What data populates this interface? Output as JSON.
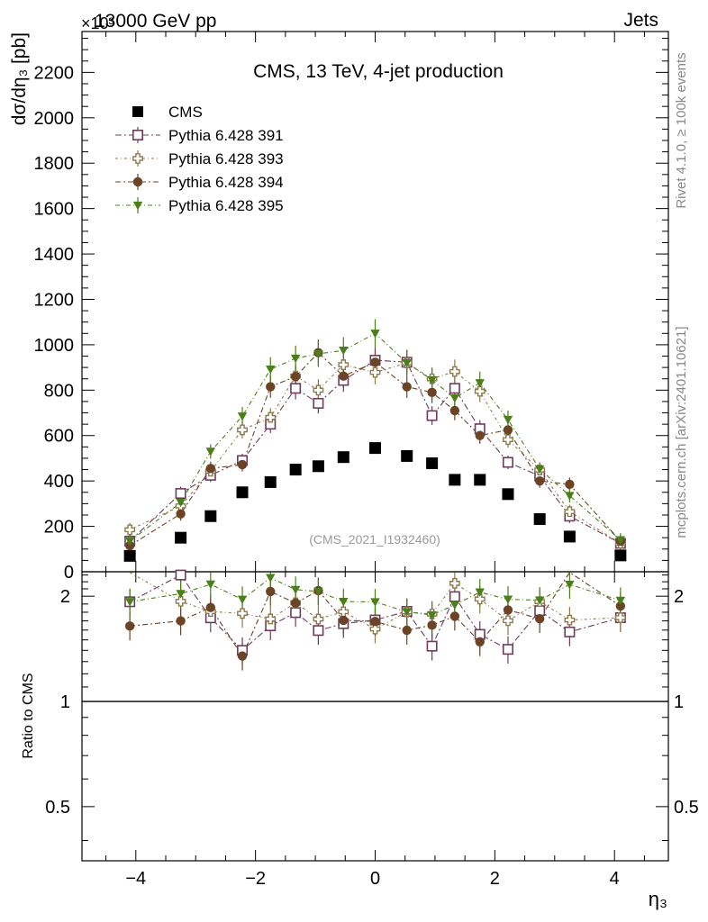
{
  "header": {
    "left": "13000 GeV pp",
    "right": "Jets",
    "exponent": "×10³"
  },
  "right_labels": {
    "rivet": "Rivet 4.1.0, ≥ 100k events",
    "mcplots": "mcplots.cern.ch [arXiv:2401.10621]"
  },
  "chart_data": {
    "type": "scatter",
    "title": "CMS, 13 TeV, 4-jet production",
    "watermark": "(CMS_2021_I1932460)",
    "xlabel": "η₃",
    "ylabel": "dσ/dη₃ [pb]",
    "ratio_ylabel": "Ratio to CMS",
    "xlim": [
      -4.9,
      4.9
    ],
    "ylim": [
      0,
      2380
    ],
    "ratio_ylim": [
      0.35,
      2.35
    ],
    "x_ticks": [
      -4,
      -2,
      0,
      2,
      4
    ],
    "x_tick_labels": [
      "−4",
      "−2",
      "0",
      "2",
      "4"
    ],
    "y_ticks": [
      0,
      200,
      400,
      600,
      800,
      1000,
      1200,
      1400,
      1600,
      1800,
      2000,
      2200
    ],
    "y_tick_labels": [
      "0",
      "200",
      "400",
      "600",
      "800",
      "1000",
      "1200",
      "1400",
      "1600",
      "1800",
      "2000",
      "2200"
    ],
    "ratio_ticks": [
      0.5,
      1,
      2
    ],
    "ratio_tick_labels": [
      "0.5",
      "1",
      "2"
    ],
    "x": [
      -4.1,
      -3.25,
      -2.75,
      -2.22,
      -1.75,
      -1.33,
      -0.95,
      -0.53,
      0.0,
      0.53,
      0.95,
      1.33,
      1.75,
      2.22,
      2.75,
      3.25,
      4.1
    ],
    "series": [
      {
        "name": "CMS",
        "marker": "filled-square",
        "color": "#000000",
        "values": [
          70,
          150,
          245,
          350,
          395,
          450,
          465,
          505,
          545,
          510,
          478,
          405,
          405,
          342,
          232,
          155,
          72
        ]
      },
      {
        "name": "Pythia 6.428 391",
        "marker": "open-square",
        "color": "#6e3c5a",
        "values": [
          135,
          345,
          425,
          490,
          650,
          808,
          742,
          843,
          932,
          923,
          688,
          808,
          630,
          482,
          422,
          245,
          125
        ]
      },
      {
        "name": "Pythia 6.428 393",
        "marker": "open-cross",
        "color": "#8c7a4e",
        "values": [
          185,
          290,
          443,
          625,
          680,
          862,
          800,
          912,
          878,
          920,
          850,
          882,
          795,
          582,
          448,
          265,
          125
        ]
      },
      {
        "name": "Pythia 6.428 394",
        "marker": "filled-circle",
        "color": "#6b4426",
        "values": [
          115,
          255,
          455,
          472,
          815,
          860,
          965,
          862,
          923,
          815,
          790,
          710,
          600,
          625,
          400,
          385,
          135
        ]
      },
      {
        "name": "Pythia 6.428 395",
        "marker": "filled-triangle-down",
        "color": "#4a7f19",
        "values": [
          135,
          305,
          530,
          685,
          892,
          940,
          960,
          975,
          1050,
          920,
          845,
          765,
          832,
          670,
          452,
          335,
          140
        ]
      }
    ]
  }
}
